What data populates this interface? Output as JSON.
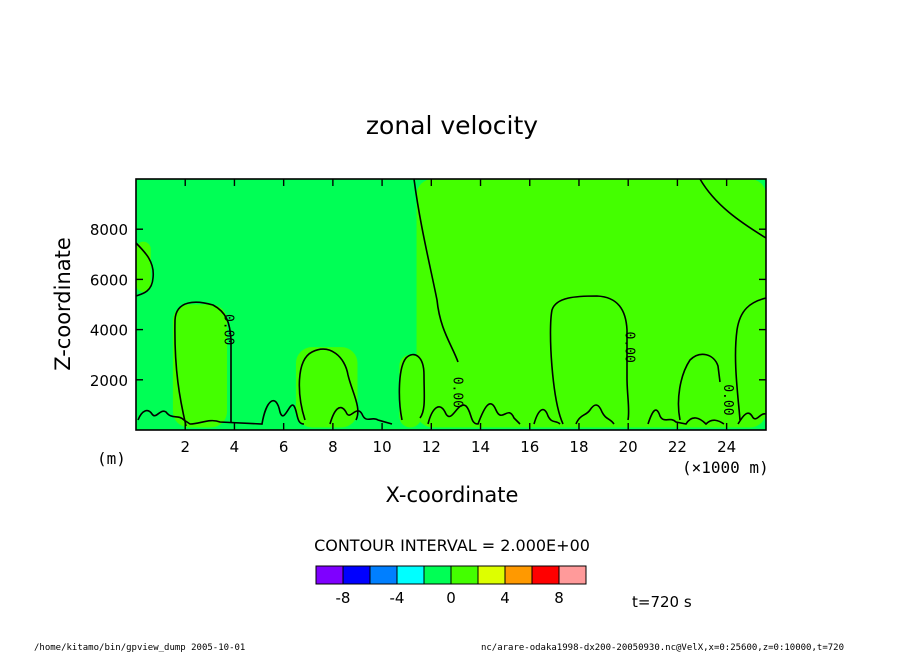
{
  "chart_data": {
    "type": "heatmap",
    "title": "zonal velocity",
    "xlabel": "X-coordinate",
    "ylabel": "Z-coordinate",
    "x_unit": "(×1000 m)",
    "y_unit": "(m)",
    "xlim": [
      0,
      25.6
    ],
    "ylim": [
      0,
      10000
    ],
    "x_ticks": [
      "2",
      "4",
      "6",
      "8",
      "10",
      "12",
      "14",
      "16",
      "18",
      "20",
      "22",
      "24"
    ],
    "y_ticks": [
      "2000",
      "4000",
      "6000",
      "8000"
    ],
    "x_tick_values": [
      2,
      4,
      6,
      8,
      10,
      12,
      14,
      16,
      18,
      20,
      22,
      24
    ],
    "y_tick_values": [
      2000,
      4000,
      6000,
      8000
    ],
    "contour_interval_label": "CONTOUR INTERVAL = 2.000E+00",
    "contour_labels": [
      "0.00",
      "0.00",
      "0.00",
      "0.00"
    ],
    "contour_label_positions": [
      {
        "x": 3.6,
        "z": 4000
      },
      {
        "x": 12.9,
        "z": 1500
      },
      {
        "x": 19.9,
        "z": 3300
      },
      {
        "x": 23.9,
        "z": 1200
      }
    ],
    "dominant_band_color": "#00ff55",
    "positive_band_color": "#44ff00",
    "color_levels": [
      {
        "range": "< -8",
        "color": "#7f00ff"
      },
      {
        "range": "-8 to -6",
        "color": "#0000ff"
      },
      {
        "range": "-6 to -4",
        "color": "#007fff"
      },
      {
        "range": "-4 to -2",
        "color": "#00ffff"
      },
      {
        "range": "-2 to 0",
        "color": "#00ff55"
      },
      {
        "range": "0 to 2",
        "color": "#44ff00"
      },
      {
        "range": "2 to 4",
        "color": "#ddff00"
      },
      {
        "range": "4 to 6",
        "color": "#ff9900"
      },
      {
        "range": "6 to 8",
        "color": "#ff0000"
      },
      {
        "range": "> 8",
        "color": "#ff9a9a"
      }
    ],
    "colorbar_ticks": [
      "-8",
      "-4",
      "0",
      "4",
      "8"
    ],
    "colorbar_tick_values": [
      -8,
      -4,
      0,
      4,
      8
    ],
    "time_label": "t=720 s",
    "regions": [
      {
        "level": "0 to 2",
        "x_range": [
          0,
          0.6
        ],
        "z_range": [
          5500,
          7500
        ]
      },
      {
        "level": "0 to 2",
        "x_range": [
          1.5,
          3.7
        ],
        "z_range": [
          100,
          5000
        ]
      },
      {
        "level": "0 to 2",
        "x_range": [
          6.5,
          9.0
        ],
        "z_range": [
          100,
          3300
        ]
      },
      {
        "level": "0 to 2",
        "x_range": [
          10.7,
          11.6
        ],
        "z_range": [
          100,
          3000
        ]
      },
      {
        "level": "0 to 2",
        "x_range": [
          11.4,
          25.6
        ],
        "z_range": [
          100,
          10000
        ]
      },
      {
        "level": "0 to 2",
        "x_range": [
          16.7,
          19.7
        ],
        "z_range": [
          100,
          5300
        ]
      },
      {
        "level": "0 to 2",
        "x_range": [
          21.9,
          23.8
        ],
        "z_range": [
          100,
          3000
        ]
      },
      {
        "level": "0 to 2",
        "x_range": [
          24.2,
          25.6
        ],
        "z_range": [
          100,
          5300
        ]
      }
    ]
  },
  "footer": {
    "left": "/home/kitamo/bin/gpview_dump  2005-10-01",
    "right": "nc/arare-odaka1998-dx200-20050930.nc@VelX,x=0:25600,z=0:10000,t=720"
  }
}
